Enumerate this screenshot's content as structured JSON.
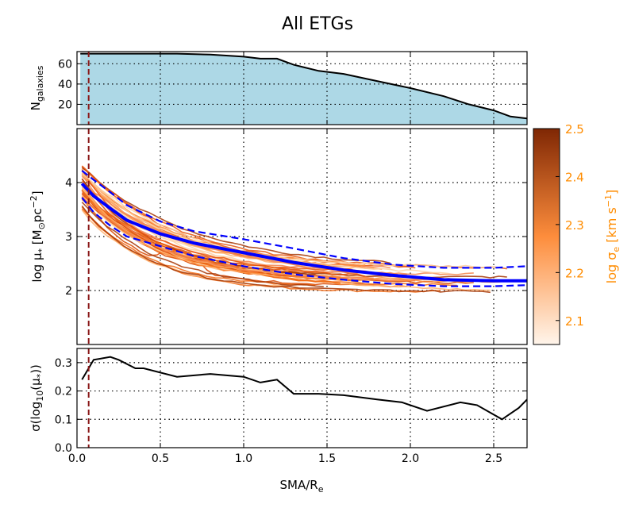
{
  "title": "All ETGs",
  "x_axis_label": "SMA/R",
  "x_axis_label_sub": "e",
  "colorbar": {
    "label_prefix": "log σ",
    "label_sub": "e",
    "label_units": "[km s",
    "label_exp": "−1",
    "label_close": "]",
    "ticks": [
      "2.1",
      "2.2",
      "2.3",
      "2.4",
      "2.5"
    ],
    "range": [
      2.05,
      2.5
    ],
    "color_low": "#fff5eb",
    "color_mid": "#fd8d3c",
    "color_high": "#7f2704",
    "label_color": "#ff8c00"
  },
  "colors": {
    "fill_top": "#add8e6",
    "mean_line": "#0000ff",
    "vline": "#8b1a1a",
    "profile_line": "#f5834a"
  },
  "chart_data": [
    {
      "panel": "top",
      "type": "area",
      "ylabel": "N",
      "ylabel_sub": "galaxies",
      "xlim": [
        0,
        2.7
      ],
      "ylim": [
        0,
        72
      ],
      "xticks": [
        0.0,
        0.5,
        1.0,
        1.5,
        2.0,
        2.5
      ],
      "yticks": [
        "20",
        "40",
        "60"
      ],
      "ytick_values": [
        20,
        40,
        60
      ],
      "grid": true,
      "vline_x": 0.07,
      "x": [
        0.02,
        0.1,
        0.3,
        0.6,
        0.8,
        1.0,
        1.1,
        1.2,
        1.3,
        1.45,
        1.6,
        1.8,
        2.0,
        2.2,
        2.35,
        2.5,
        2.6,
        2.7
      ],
      "y": [
        70,
        70,
        70,
        70,
        69,
        67,
        65,
        65,
        59,
        53,
        50,
        43,
        36,
        28,
        20,
        14,
        8,
        6
      ]
    },
    {
      "panel": "middle",
      "type": "line",
      "ylabel": "log μ",
      "ylabel_sub": "*",
      "ylabel_units": "[M",
      "ylabel_units_sub": "⊙",
      "ylabel_units_rest": "pc",
      "ylabel_units_exp": "−2",
      "ylabel_close": "]",
      "xlim": [
        0,
        2.7
      ],
      "ylim": [
        1.0,
        5.0
      ],
      "xticks": [
        0.0,
        0.5,
        1.0,
        1.5,
        2.0,
        2.5
      ],
      "yticks": [
        "2",
        "3",
        "4"
      ],
      "ytick_values": [
        2,
        3,
        4
      ],
      "grid": true,
      "vline_x": 0.07,
      "series": [
        {
          "style": "solid-thick",
          "x": [
            0.03,
            0.1,
            0.2,
            0.3,
            0.5,
            0.7,
            1.0,
            1.3,
            1.6,
            1.9,
            2.2,
            2.5,
            2.7
          ],
          "values": [
            3.98,
            3.75,
            3.52,
            3.3,
            3.05,
            2.88,
            2.7,
            2.52,
            2.38,
            2.28,
            2.2,
            2.18,
            2.18
          ]
        },
        {
          "style": "dashed",
          "x": [
            0.03,
            0.1,
            0.2,
            0.3,
            0.5,
            0.7,
            1.0,
            1.3,
            1.6,
            1.9,
            2.2,
            2.5,
            2.7
          ],
          "values": [
            4.22,
            4.05,
            3.82,
            3.58,
            3.28,
            3.1,
            2.95,
            2.78,
            2.6,
            2.48,
            2.42,
            2.42,
            2.45
          ]
        },
        {
          "style": "dashed",
          "x": [
            0.03,
            0.1,
            0.2,
            0.3,
            0.5,
            0.7,
            1.0,
            1.3,
            1.6,
            1.9,
            2.2,
            2.5,
            2.7
          ],
          "values": [
            3.72,
            3.45,
            3.2,
            3.0,
            2.82,
            2.64,
            2.45,
            2.3,
            2.2,
            2.12,
            2.08,
            2.08,
            2.1
          ]
        }
      ]
    },
    {
      "panel": "bottom",
      "type": "line",
      "ylabel": "σ(log",
      "ylabel_sub": "10",
      "ylabel_rest": "(μ",
      "ylabel_rest_sub": "*",
      "ylabel_close": "))",
      "xlim": [
        0,
        2.7
      ],
      "ylim": [
        0.0,
        0.35
      ],
      "xticks": [
        0.0,
        0.5,
        1.0,
        1.5,
        2.0,
        2.5
      ],
      "xtick_labels": [
        "0.0",
        "0.5",
        "1.0",
        "1.5",
        "2.0",
        "2.5"
      ],
      "yticks": [
        "0.0",
        "0.1",
        "0.2",
        "0.3"
      ],
      "ytick_values": [
        0.0,
        0.1,
        0.2,
        0.3
      ],
      "grid": true,
      "vline_x": 0.07,
      "x": [
        0.03,
        0.1,
        0.2,
        0.25,
        0.35,
        0.4,
        0.6,
        0.8,
        1.0,
        1.1,
        1.2,
        1.3,
        1.45,
        1.6,
        1.8,
        1.95,
        2.1,
        2.3,
        2.4,
        2.55,
        2.65,
        2.7
      ],
      "y": [
        0.24,
        0.31,
        0.32,
        0.31,
        0.28,
        0.28,
        0.25,
        0.26,
        0.25,
        0.23,
        0.24,
        0.19,
        0.19,
        0.185,
        0.17,
        0.16,
        0.13,
        0.16,
        0.15,
        0.1,
        0.14,
        0.17
      ]
    }
  ]
}
